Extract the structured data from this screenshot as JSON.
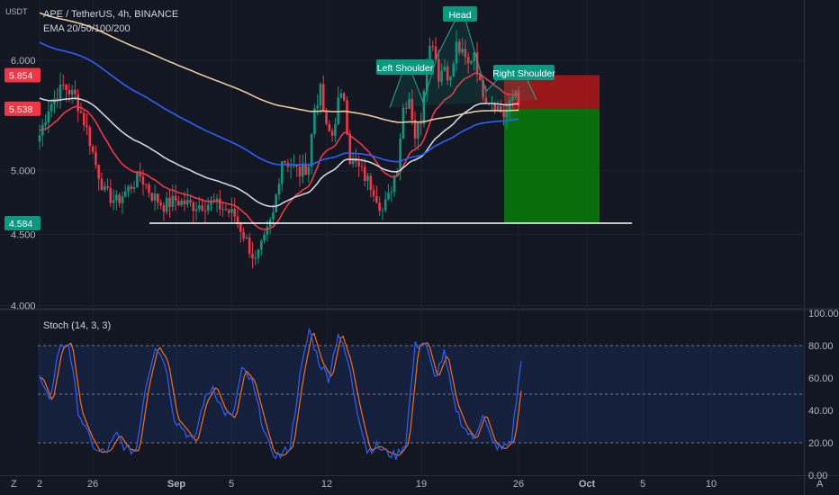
{
  "chart_data": {
    "type": "candlestick",
    "title": "APE / TetherUS, 4h, BINANCE",
    "currency_label": "USDT",
    "indicator_label": "EMA 20/50/100/200",
    "oscillator_label": "Stoch (14, 3, 3)",
    "x_ticks": [
      "2",
      "26",
      "Sep",
      "5",
      "12",
      "19",
      "26",
      "Oct",
      "5",
      "10"
    ],
    "price_axis": {
      "ticks": [
        "6.000",
        "5.000",
        "4.500",
        "4.000"
      ],
      "scale": "log",
      "range": [
        3.98,
        6.55
      ]
    },
    "price_labels": [
      {
        "value": "5.854",
        "color": "#f23645"
      },
      {
        "value": "5.538",
        "color": "#f23645"
      },
      {
        "value": "4.584",
        "color": "#089981"
      }
    ],
    "stoch_axis": {
      "ticks": [
        "100.00",
        "80.00",
        "60.00",
        "40.00",
        "20.00",
        "0.00"
      ],
      "range": [
        0,
        100
      ],
      "upper_band": 80,
      "middle": 50,
      "lower_band": 20
    },
    "annotations": [
      "Head",
      "Left Shoulder",
      "Right Shoulder"
    ],
    "support_level": 4.584,
    "position": {
      "entry": 5.538,
      "stop": 5.854,
      "target": 4.584
    },
    "ema_colors": {
      "ema20": "#f23645",
      "ema50": "#d1d4dc",
      "ema100": "#2962ff",
      "ema200": "#e8c9a0"
    },
    "stoch_colors": {
      "k": "#2962ff",
      "d": "#ff6d00"
    },
    "corner_labels": {
      "left": "Z",
      "right": "A"
    }
  }
}
